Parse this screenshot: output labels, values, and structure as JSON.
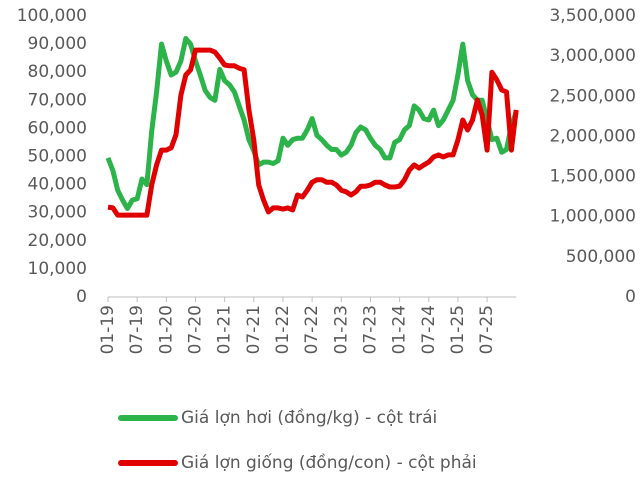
{
  "chart_data": {
    "type": "line",
    "categories": [
      "01-19",
      null,
      null,
      null,
      null,
      null,
      "07-19",
      null,
      null,
      null,
      null,
      null,
      "01-20",
      null,
      null,
      null,
      null,
      null,
      "07-20",
      null,
      null,
      null,
      null,
      null,
      "01-21",
      null,
      null,
      null,
      null,
      null,
      "07-21",
      null,
      null,
      null,
      null,
      null,
      "01-22",
      null,
      null,
      null,
      null,
      null,
      "07-22",
      null,
      null,
      null,
      null,
      null,
      "01-23",
      null,
      null,
      null,
      null,
      null,
      "07-23",
      null,
      null,
      null,
      null,
      null,
      "01-24",
      null,
      null,
      null,
      null,
      null,
      "07-24",
      null,
      null,
      null,
      null,
      null,
      "01-25",
      null,
      null,
      null,
      null,
      null,
      "07-25",
      null,
      null,
      null,
      null,
      null,
      null
    ],
    "series": [
      {
        "name": "Giá lợn hơi (đồng/kg) - cột trái",
        "color": "#2cb34a",
        "axis": "y",
        "values": [
          49500,
          45000,
          38000,
          34500,
          31500,
          34500,
          35000,
          42000,
          40000,
          59000,
          73000,
          90000,
          84000,
          79000,
          80000,
          84000,
          92000,
          90000,
          84000,
          79000,
          73500,
          71000,
          70000,
          81000,
          77000,
          75500,
          73000,
          68000,
          63000,
          56000,
          52000,
          47000,
          48000,
          48000,
          47500,
          48500,
          56500,
          54000,
          56000,
          56500,
          56500,
          59500,
          63500,
          57500,
          56000,
          54000,
          52500,
          52500,
          50500,
          51500,
          54000,
          58500,
          60500,
          59500,
          56500,
          54000,
          52500,
          49500,
          49500,
          55000,
          56000,
          59500,
          61000,
          68000,
          66500,
          63500,
          63000,
          66500,
          61000,
          63000,
          66500,
          70000,
          79000,
          90000,
          77000,
          72000,
          70000,
          70000,
          63000,
          56000,
          56500,
          51500,
          52500,
          61000,
          65800
        ]
      },
      {
        "name": "Giá lợn giống (đồng/con) - cột phải",
        "color": "#e00000",
        "axis": "y2",
        "values": [
          1120000,
          1110000,
          1020000,
          1020000,
          1020000,
          1020000,
          1020000,
          1020000,
          1020000,
          1395000,
          1645000,
          1830000,
          1830000,
          1860000,
          2020000,
          2515000,
          2765000,
          2830000,
          3075000,
          3075000,
          3075000,
          3075000,
          3050000,
          2975000,
          2890000,
          2880000,
          2880000,
          2850000,
          2830000,
          2330000,
          1955000,
          1395000,
          1210000,
          1060000,
          1110000,
          1110000,
          1095000,
          1110000,
          1085000,
          1270000,
          1245000,
          1330000,
          1430000,
          1460000,
          1460000,
          1430000,
          1430000,
          1395000,
          1330000,
          1310000,
          1270000,
          1310000,
          1380000,
          1380000,
          1395000,
          1430000,
          1430000,
          1395000,
          1370000,
          1370000,
          1380000,
          1460000,
          1580000,
          1645000,
          1605000,
          1645000,
          1680000,
          1745000,
          1770000,
          1745000,
          1770000,
          1770000,
          1955000,
          2205000,
          2080000,
          2205000,
          2455000,
          2265000,
          1830000,
          2800000,
          2705000,
          2580000,
          2555000,
          1830000,
          2330000
        ]
      }
    ],
    "ylim": [
      0,
      100000
    ],
    "yticks": [
      0,
      {
        "value": 10000,
        "label": "10,000"
      },
      {
        "value": 20000,
        "label": "20,000"
      },
      {
        "value": 30000,
        "label": "30,000"
      },
      {
        "value": 40000,
        "label": "40,000"
      },
      {
        "value": 50000,
        "label": "50,000"
      },
      {
        "value": 60000,
        "label": "60,000"
      },
      {
        "value": 70000,
        "label": "70,000"
      },
      {
        "value": 80000,
        "label": "80,000"
      },
      {
        "value": 90000,
        "label": "90,000"
      },
      {
        "value": 100000,
        "label": "100,000"
      }
    ],
    "y2lim": [
      0,
      3500000
    ],
    "y2ticks": [
      0,
      {
        "value": 500000,
        "label": "500,000"
      },
      {
        "value": 1000000,
        "label": "1,000,000"
      },
      {
        "value": 1500000,
        "label": "1,500,000"
      },
      {
        "value": 2000000,
        "label": "2,000,000"
      },
      {
        "value": 2500000,
        "label": "2,500,000"
      },
      {
        "value": 3000000,
        "label": "3,000,000"
      },
      {
        "value": 3500000,
        "label": "3,500,000"
      }
    ],
    "grid": false
  }
}
